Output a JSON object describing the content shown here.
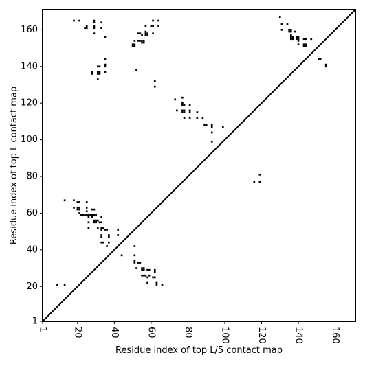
{
  "chart_data": {
    "type": "scatter",
    "title": "",
    "xlabel": "Residue index of top L/5 contact map",
    "ylabel": "Residue index of top L contact map",
    "xlim": [
      1,
      171
    ],
    "ylim": [
      1,
      171
    ],
    "xticks": [
      1,
      20,
      40,
      60,
      80,
      100,
      120,
      140,
      160
    ],
    "yticks": [
      1,
      20,
      40,
      60,
      80,
      100,
      120,
      140,
      160
    ],
    "grid": false,
    "diagonal": true,
    "marker_color": "#000000",
    "series": [
      {
        "description": "top L/5 contacts (below diagonal)",
        "points": [
          [
            9,
            21
          ],
          [
            13,
            21
          ],
          [
            13,
            67
          ],
          [
            18,
            67
          ],
          [
            18,
            63
          ],
          [
            20,
            63
          ],
          [
            21,
            63
          ],
          [
            20,
            62
          ],
          [
            21,
            62
          ],
          [
            20,
            66
          ],
          [
            21,
            66
          ],
          [
            21,
            60
          ],
          [
            22,
            59
          ],
          [
            23,
            59
          ],
          [
            24,
            59
          ],
          [
            25,
            66
          ],
          [
            25,
            63
          ],
          [
            25,
            61
          ],
          [
            25,
            59
          ],
          [
            26,
            59
          ],
          [
            26,
            58
          ],
          [
            26,
            55
          ],
          [
            26,
            52
          ],
          [
            27,
            59
          ],
          [
            28,
            59
          ],
          [
            28,
            58
          ],
          [
            28,
            62
          ],
          [
            29,
            62
          ],
          [
            29,
            59
          ],
          [
            29,
            56
          ],
          [
            29,
            55
          ],
          [
            30,
            59
          ],
          [
            30,
            56
          ],
          [
            30,
            55
          ],
          [
            31,
            56
          ],
          [
            31,
            52
          ],
          [
            32,
            55
          ],
          [
            33,
            55
          ],
          [
            33,
            52
          ],
          [
            33,
            51
          ],
          [
            33,
            58
          ],
          [
            33,
            48
          ],
          [
            33,
            47
          ],
          [
            33,
            44
          ],
          [
            34,
            44
          ],
          [
            34,
            52
          ],
          [
            35,
            51
          ],
          [
            36,
            51
          ],
          [
            36,
            42
          ],
          [
            37,
            44
          ],
          [
            37,
            47
          ],
          [
            37,
            48
          ],
          [
            42,
            48
          ],
          [
            42,
            51
          ],
          [
            44,
            37
          ],
          [
            51,
            42
          ],
          [
            51,
            37
          ],
          [
            51,
            34
          ],
          [
            51,
            33
          ],
          [
            52,
            30
          ],
          [
            53,
            33
          ],
          [
            54,
            33
          ],
          [
            55,
            30
          ],
          [
            55,
            29
          ],
          [
            55,
            26
          ],
          [
            56,
            26
          ],
          [
            56,
            29
          ],
          [
            56,
            30
          ],
          [
            57,
            26
          ],
          [
            58,
            25
          ],
          [
            58,
            22
          ],
          [
            58,
            29
          ],
          [
            59,
            29
          ],
          [
            59,
            26
          ],
          [
            61,
            25
          ],
          [
            62,
            25
          ],
          [
            62,
            28
          ],
          [
            62,
            29
          ],
          [
            63,
            22
          ],
          [
            63,
            21
          ],
          [
            66,
            21
          ],
          [
            116,
            77
          ],
          [
            119,
            77
          ],
          [
            119,
            81
          ]
        ]
      },
      {
        "description": "top L contacts (above diagonal)",
        "points": [
          [
            18,
            165
          ],
          [
            21,
            165
          ],
          [
            24,
            161
          ],
          [
            25,
            161
          ],
          [
            25,
            162
          ],
          [
            29,
            165
          ],
          [
            29,
            164
          ],
          [
            29,
            162
          ],
          [
            29,
            161
          ],
          [
            29,
            158
          ],
          [
            33,
            164
          ],
          [
            33,
            161
          ],
          [
            35,
            156
          ],
          [
            28,
            137
          ],
          [
            28,
            136
          ],
          [
            31,
            140
          ],
          [
            31,
            137
          ],
          [
            31,
            136
          ],
          [
            31,
            133
          ],
          [
            32,
            140
          ],
          [
            32,
            137
          ],
          [
            32,
            136
          ],
          [
            35,
            144
          ],
          [
            35,
            141
          ],
          [
            35,
            140
          ],
          [
            35,
            137
          ],
          [
            50,
            152
          ],
          [
            50,
            151
          ],
          [
            51,
            154
          ],
          [
            51,
            152
          ],
          [
            51,
            151
          ],
          [
            52,
            138
          ],
          [
            53,
            154
          ],
          [
            53,
            158
          ],
          [
            54,
            158
          ],
          [
            54,
            154
          ],
          [
            55,
            157
          ],
          [
            55,
            154
          ],
          [
            55,
            153
          ],
          [
            56,
            154
          ],
          [
            56,
            153
          ],
          [
            57,
            162
          ],
          [
            57,
            159
          ],
          [
            57,
            158
          ],
          [
            57,
            157
          ],
          [
            58,
            158
          ],
          [
            58,
            157
          ],
          [
            60,
            162
          ],
          [
            61,
            165
          ],
          [
            61,
            162
          ],
          [
            61,
            158
          ],
          [
            62,
            132
          ],
          [
            62,
            129
          ],
          [
            64,
            165
          ],
          [
            64,
            162
          ],
          [
            73,
            122
          ],
          [
            74,
            116
          ],
          [
            77,
            123
          ],
          [
            77,
            120
          ],
          [
            77,
            119
          ],
          [
            77,
            116
          ],
          [
            77,
            115
          ],
          [
            78,
            119
          ],
          [
            78,
            116
          ],
          [
            78,
            115
          ],
          [
            78,
            112
          ],
          [
            81,
            119
          ],
          [
            81,
            116
          ],
          [
            81,
            115
          ],
          [
            81,
            112
          ],
          [
            85,
            115
          ],
          [
            85,
            112
          ],
          [
            88,
            112
          ],
          [
            89,
            108
          ],
          [
            90,
            108
          ],
          [
            93,
            108
          ],
          [
            93,
            107
          ],
          [
            93,
            104
          ],
          [
            93,
            99
          ],
          [
            99,
            107
          ],
          [
            130,
            167
          ],
          [
            131,
            163
          ],
          [
            131,
            160
          ],
          [
            134,
            163
          ],
          [
            135,
            160
          ],
          [
            135,
            159
          ],
          [
            136,
            160
          ],
          [
            136,
            159
          ],
          [
            136,
            157
          ],
          [
            136,
            156
          ],
          [
            136,
            155
          ],
          [
            137,
            156
          ],
          [
            137,
            155
          ],
          [
            138,
            159
          ],
          [
            139,
            156
          ],
          [
            139,
            155
          ],
          [
            140,
            156
          ],
          [
            140,
            155
          ],
          [
            140,
            154
          ],
          [
            140,
            152
          ],
          [
            143,
            155
          ],
          [
            143,
            152
          ],
          [
            143,
            151
          ],
          [
            144,
            155
          ],
          [
            144,
            152
          ],
          [
            144,
            151
          ],
          [
            147,
            155
          ],
          [
            151,
            144
          ],
          [
            152,
            144
          ],
          [
            155,
            141
          ],
          [
            155,
            140
          ]
        ]
      }
    ]
  }
}
